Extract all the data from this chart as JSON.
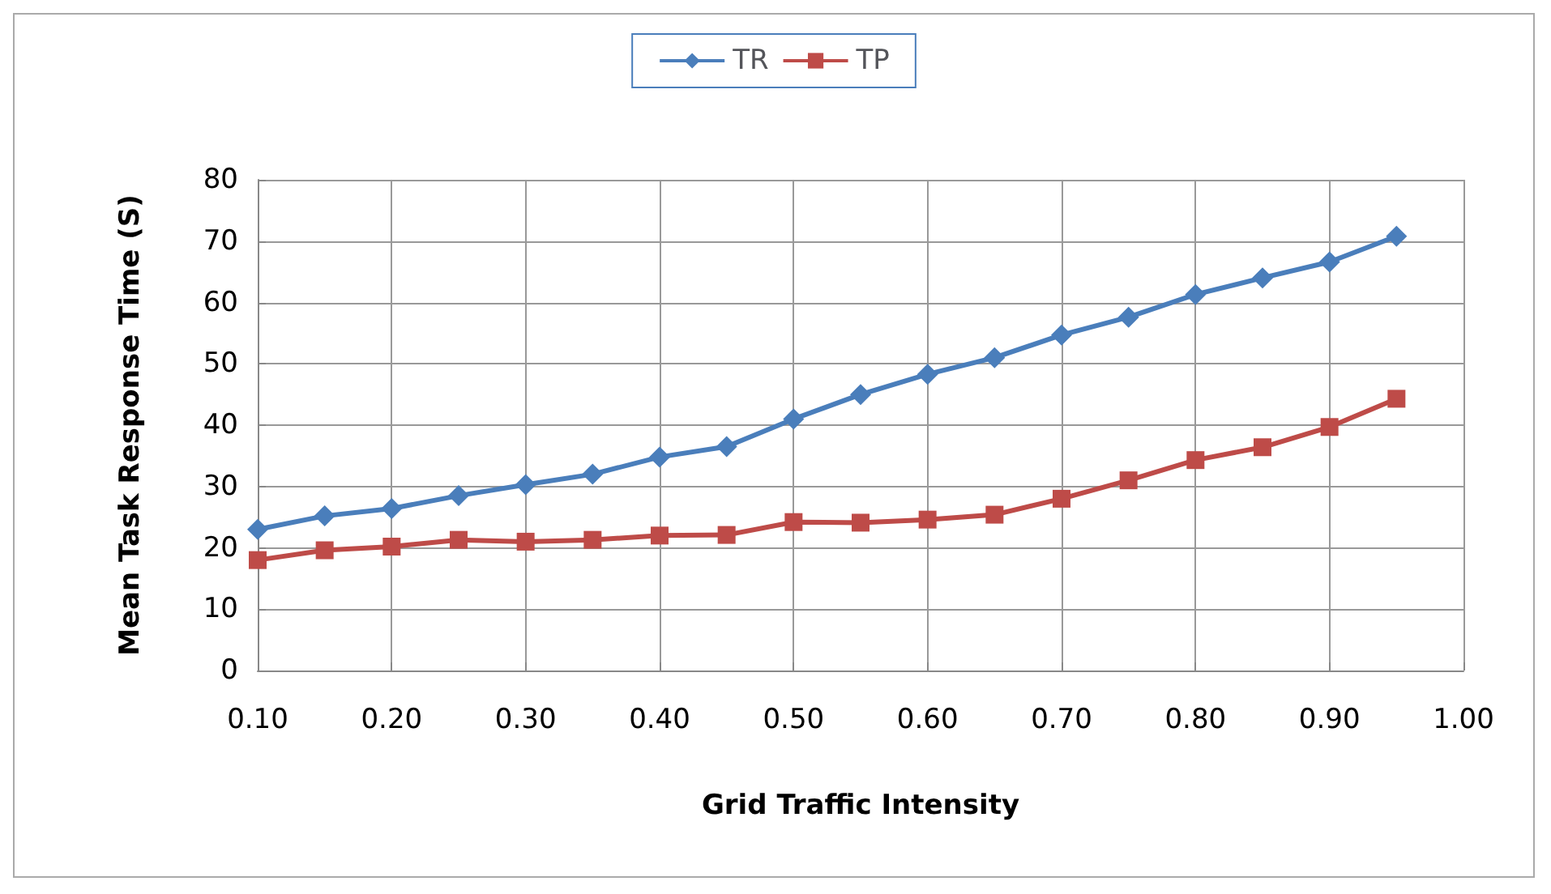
{
  "chart_data": {
    "type": "line",
    "xlabel": "Grid Traffic Intensity",
    "ylabel": "Mean Task Response Time (S)",
    "x": [
      0.1,
      0.15,
      0.2,
      0.25,
      0.3,
      0.35,
      0.4,
      0.45,
      0.5,
      0.55,
      0.6,
      0.65,
      0.7,
      0.75,
      0.8,
      0.85,
      0.9,
      0.95
    ],
    "series": [
      {
        "name": "TR",
        "color": "#4a7ebb",
        "marker": "diamond",
        "values": [
          23,
          25.2,
          26.4,
          28.5,
          30.3,
          32,
          34.8,
          36.5,
          41,
          45,
          48.3,
          51,
          54.7,
          57.6,
          61.3,
          64,
          66.6,
          70.8
        ]
      },
      {
        "name": "TP",
        "color": "#be4b48",
        "marker": "square",
        "values": [
          18,
          19.6,
          20.2,
          21.3,
          21,
          21.3,
          22,
          22.1,
          24.2,
          24.1,
          24.6,
          25.4,
          28,
          31,
          34.3,
          36.4,
          39.7,
          44.3
        ]
      }
    ],
    "xlim": [
      0.1,
      1.0
    ],
    "xticks": [
      {
        "value": 0.1,
        "label": "0.10"
      },
      {
        "value": 0.2,
        "label": "0.20"
      },
      {
        "value": 0.3,
        "label": "0.30"
      },
      {
        "value": 0.4,
        "label": "0.40"
      },
      {
        "value": 0.5,
        "label": "0.50"
      },
      {
        "value": 0.6,
        "label": "0.60"
      },
      {
        "value": 0.7,
        "label": "0.70"
      },
      {
        "value": 0.8,
        "label": "0.80"
      },
      {
        "value": 0.9,
        "label": "0.90"
      },
      {
        "value": 1.0,
        "label": "1.00"
      }
    ],
    "ylim": [
      0,
      80
    ],
    "yticks": [
      0,
      10,
      20,
      30,
      40,
      50,
      60,
      70,
      80
    ],
    "grid": true,
    "legend": "top",
    "line_style": "solid"
  }
}
